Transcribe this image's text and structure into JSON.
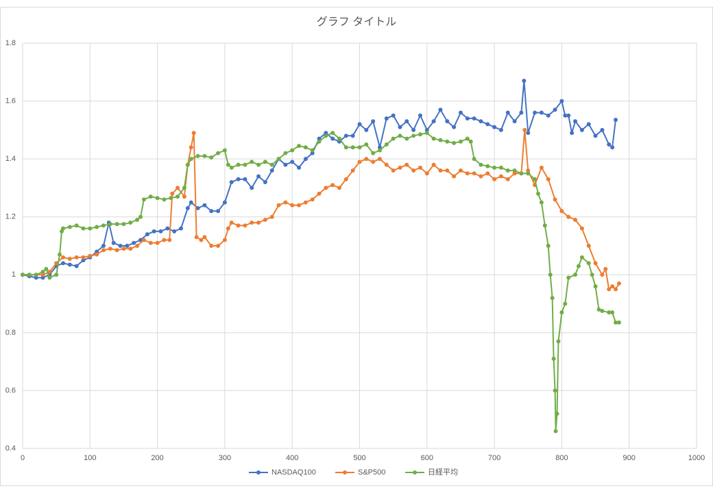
{
  "chart_data": {
    "type": "line",
    "title": "グラフ タイトル",
    "xlim": [
      0,
      1000
    ],
    "xticks": [
      0,
      100,
      200,
      300,
      400,
      500,
      600,
      700,
      800,
      900,
      1000
    ],
    "ylim": [
      0.4,
      1.8
    ],
    "yticks": [
      0.4,
      0.6,
      0.8,
      1,
      1.2,
      1.4,
      1.6,
      1.8
    ],
    "grid": true,
    "legend": "bottom",
    "series": [
      {
        "name": "NASDAQ100",
        "color": "#4472c4",
        "x": [
          0,
          10,
          20,
          30,
          40,
          50,
          60,
          70,
          80,
          90,
          100,
          110,
          120,
          128,
          135,
          145,
          155,
          165,
          175,
          185,
          195,
          205,
          215,
          225,
          235,
          245,
          250,
          260,
          270,
          280,
          290,
          300,
          310,
          320,
          330,
          340,
          350,
          360,
          370,
          380,
          390,
          400,
          410,
          420,
          430,
          440,
          450,
          460,
          470,
          480,
          490,
          500,
          510,
          520,
          530,
          540,
          550,
          560,
          570,
          580,
          590,
          600,
          610,
          620,
          630,
          640,
          650,
          660,
          670,
          680,
          690,
          700,
          710,
          720,
          730,
          740,
          744,
          750,
          760,
          770,
          780,
          790,
          800,
          805,
          810,
          815,
          820,
          830,
          840,
          850,
          860,
          870,
          875,
          880
        ],
        "values": [
          1.0,
          0.995,
          0.99,
          0.99,
          1.0,
          1.03,
          1.04,
          1.035,
          1.03,
          1.05,
          1.06,
          1.08,
          1.1,
          1.18,
          1.11,
          1.1,
          1.1,
          1.11,
          1.12,
          1.14,
          1.15,
          1.15,
          1.16,
          1.15,
          1.16,
          1.23,
          1.25,
          1.23,
          1.24,
          1.22,
          1.22,
          1.25,
          1.32,
          1.33,
          1.33,
          1.3,
          1.34,
          1.32,
          1.36,
          1.4,
          1.38,
          1.39,
          1.37,
          1.4,
          1.42,
          1.47,
          1.49,
          1.47,
          1.46,
          1.48,
          1.48,
          1.52,
          1.5,
          1.53,
          1.44,
          1.54,
          1.55,
          1.51,
          1.53,
          1.5,
          1.55,
          1.5,
          1.53,
          1.57,
          1.53,
          1.51,
          1.56,
          1.54,
          1.54,
          1.53,
          1.52,
          1.51,
          1.5,
          1.56,
          1.53,
          1.56,
          1.67,
          1.49,
          1.56,
          1.56,
          1.55,
          1.57,
          1.6,
          1.55,
          1.55,
          1.49,
          1.53,
          1.5,
          1.52,
          1.48,
          1.5,
          1.45,
          1.44,
          1.535
        ]
      },
      {
        "name": "S&P500",
        "color": "#ed7d31",
        "x": [
          0,
          10,
          20,
          30,
          40,
          50,
          60,
          70,
          80,
          90,
          100,
          110,
          120,
          130,
          140,
          150,
          160,
          170,
          180,
          190,
          200,
          210,
          218,
          222,
          230,
          240,
          245,
          250,
          254,
          258,
          265,
          270,
          280,
          290,
          300,
          305,
          310,
          320,
          330,
          340,
          350,
          360,
          370,
          380,
          390,
          400,
          410,
          420,
          430,
          440,
          450,
          460,
          470,
          480,
          490,
          500,
          510,
          520,
          530,
          540,
          550,
          560,
          570,
          580,
          590,
          600,
          610,
          620,
          630,
          640,
          650,
          660,
          670,
          680,
          690,
          700,
          710,
          720,
          730,
          740,
          745,
          750,
          760,
          770,
          780,
          790,
          800,
          810,
          820,
          830,
          840,
          850,
          860,
          865,
          870,
          875,
          880,
          885
        ],
        "values": [
          1.0,
          1.0,
          1.0,
          1.0,
          1.01,
          1.04,
          1.06,
          1.055,
          1.06,
          1.06,
          1.065,
          1.07,
          1.085,
          1.09,
          1.085,
          1.09,
          1.09,
          1.1,
          1.12,
          1.11,
          1.11,
          1.12,
          1.12,
          1.28,
          1.3,
          1.27,
          1.38,
          1.44,
          1.49,
          1.13,
          1.12,
          1.13,
          1.1,
          1.1,
          1.12,
          1.16,
          1.18,
          1.17,
          1.17,
          1.18,
          1.18,
          1.19,
          1.2,
          1.24,
          1.25,
          1.24,
          1.24,
          1.25,
          1.26,
          1.28,
          1.3,
          1.31,
          1.3,
          1.33,
          1.36,
          1.39,
          1.4,
          1.39,
          1.4,
          1.38,
          1.36,
          1.37,
          1.38,
          1.36,
          1.37,
          1.35,
          1.38,
          1.36,
          1.36,
          1.34,
          1.36,
          1.35,
          1.35,
          1.34,
          1.35,
          1.33,
          1.34,
          1.33,
          1.35,
          1.35,
          1.5,
          1.36,
          1.31,
          1.37,
          1.33,
          1.26,
          1.22,
          1.2,
          1.19,
          1.16,
          1.1,
          1.04,
          1.0,
          1.02,
          0.95,
          0.96,
          0.95,
          0.97
        ]
      },
      {
        "name": "日経平均",
        "color": "#70ad47",
        "x": [
          0,
          10,
          20,
          30,
          35,
          40,
          50,
          55,
          58,
          60,
          70,
          80,
          90,
          100,
          110,
          120,
          130,
          140,
          150,
          160,
          170,
          175,
          180,
          190,
          200,
          210,
          220,
          230,
          240,
          245,
          250,
          260,
          270,
          280,
          290,
          300,
          305,
          310,
          320,
          330,
          340,
          350,
          360,
          370,
          380,
          390,
          400,
          410,
          420,
          430,
          440,
          450,
          460,
          470,
          480,
          490,
          500,
          510,
          520,
          530,
          540,
          550,
          560,
          570,
          580,
          590,
          600,
          610,
          620,
          630,
          640,
          650,
          660,
          665,
          670,
          680,
          690,
          700,
          710,
          720,
          730,
          740,
          750,
          760,
          765,
          770,
          775,
          780,
          783,
          786,
          788,
          790,
          791,
          793,
          795,
          800,
          805,
          810,
          820,
          825,
          830,
          840,
          845,
          850,
          855,
          860,
          870,
          875,
          880,
          885
        ],
        "values": [
          1.0,
          1.0,
          1.0,
          1.01,
          1.02,
          0.99,
          1.0,
          1.07,
          1.15,
          1.16,
          1.165,
          1.17,
          1.16,
          1.16,
          1.165,
          1.17,
          1.175,
          1.175,
          1.175,
          1.18,
          1.19,
          1.2,
          1.26,
          1.27,
          1.265,
          1.26,
          1.265,
          1.27,
          1.3,
          1.38,
          1.4,
          1.41,
          1.41,
          1.405,
          1.42,
          1.43,
          1.38,
          1.37,
          1.38,
          1.38,
          1.39,
          1.38,
          1.39,
          1.38,
          1.4,
          1.42,
          1.43,
          1.445,
          1.44,
          1.43,
          1.46,
          1.48,
          1.49,
          1.47,
          1.44,
          1.44,
          1.44,
          1.45,
          1.42,
          1.43,
          1.45,
          1.47,
          1.48,
          1.47,
          1.48,
          1.485,
          1.49,
          1.47,
          1.465,
          1.46,
          1.455,
          1.46,
          1.47,
          1.46,
          1.4,
          1.38,
          1.375,
          1.37,
          1.37,
          1.36,
          1.36,
          1.35,
          1.35,
          1.33,
          1.28,
          1.25,
          1.17,
          1.1,
          1.0,
          0.92,
          0.71,
          0.6,
          0.46,
          0.52,
          0.77,
          0.87,
          0.9,
          0.99,
          1.0,
          1.03,
          1.06,
          1.04,
          1.0,
          0.96,
          0.88,
          0.875,
          0.87,
          0.87,
          0.835,
          0.835
        ]
      }
    ]
  }
}
